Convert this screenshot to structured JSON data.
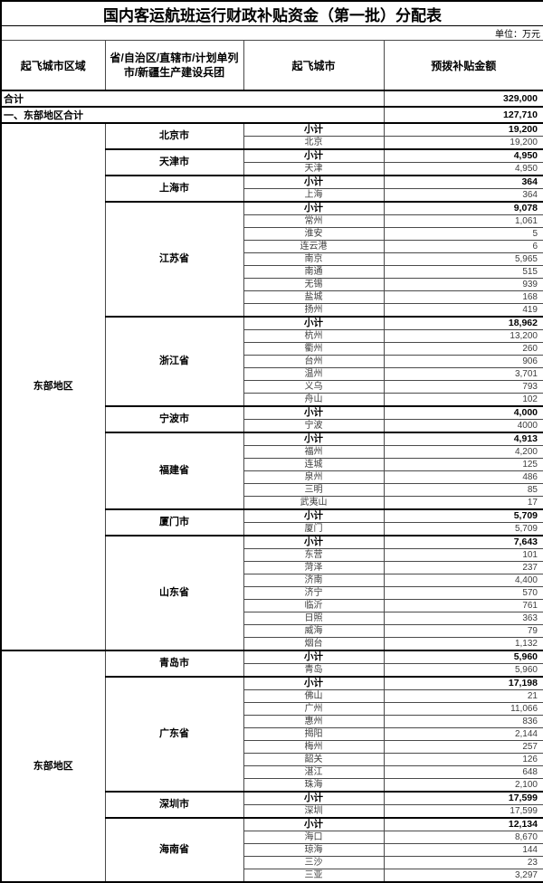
{
  "title": "国内客运航班运行财政补贴资金（第一批）分配表",
  "unit_label": "单位：万元",
  "columns": [
    "起飞城市区域",
    "省/自治区/直辖市/计划单列市/新疆生产建设兵团",
    "起飞城市",
    "预拨补贴金额"
  ],
  "subtotal_label": "小计",
  "summary_rows": [
    {
      "label": "合计",
      "value": "329,000"
    },
    {
      "label": "一、东部地区合计",
      "value": "127,710"
    }
  ],
  "regions": [
    {
      "region": "东部地区",
      "provinces": [
        {
          "name": "北京市",
          "subtotal": "19,200",
          "cities": [
            [
              "北京",
              "19,200"
            ]
          ]
        },
        {
          "name": "天津市",
          "subtotal": "4,950",
          "cities": [
            [
              "天津",
              "4,950"
            ]
          ]
        },
        {
          "name": "上海市",
          "subtotal": "364",
          "cities": [
            [
              "上海",
              "364"
            ]
          ]
        },
        {
          "name": "江苏省",
          "subtotal": "9,078",
          "cities": [
            [
              "常州",
              "1,061"
            ],
            [
              "淮安",
              "5"
            ],
            [
              "连云港",
              "6"
            ],
            [
              "南京",
              "5,965"
            ],
            [
              "南通",
              "515"
            ],
            [
              "无锡",
              "939"
            ],
            [
              "盐城",
              "168"
            ],
            [
              "扬州",
              "419"
            ]
          ]
        },
        {
          "name": "浙江省",
          "subtotal": "18,962",
          "cities": [
            [
              "杭州",
              "13,200"
            ],
            [
              "衢州",
              "260"
            ],
            [
              "台州",
              "906"
            ],
            [
              "温州",
              "3,701"
            ],
            [
              "义乌",
              "793"
            ],
            [
              "舟山",
              "102"
            ]
          ]
        },
        {
          "name": "宁波市",
          "subtotal": "4,000",
          "cities": [
            [
              "宁波",
              "4000"
            ]
          ]
        },
        {
          "name": "福建省",
          "subtotal": "4,913",
          "cities": [
            [
              "福州",
              "4,200"
            ],
            [
              "连城",
              "125"
            ],
            [
              "泉州",
              "486"
            ],
            [
              "三明",
              "85"
            ],
            [
              "武夷山",
              "17"
            ]
          ]
        },
        {
          "name": "厦门市",
          "subtotal": "5,709",
          "cities": [
            [
              "厦门",
              "5,709"
            ]
          ]
        },
        {
          "name": "山东省",
          "subtotal": "7,643",
          "cities": [
            [
              "东营",
              "101"
            ],
            [
              "菏泽",
              "237"
            ],
            [
              "济南",
              "4,400"
            ],
            [
              "济宁",
              "570"
            ],
            [
              "临沂",
              "761"
            ],
            [
              "日照",
              "363"
            ],
            [
              "威海",
              "79"
            ],
            [
              "烟台",
              "1,132"
            ]
          ]
        }
      ]
    },
    {
      "region": "东部地区",
      "provinces": [
        {
          "name": "青岛市",
          "subtotal": "5,960",
          "cities": [
            [
              "青岛",
              "5,960"
            ]
          ]
        },
        {
          "name": "广东省",
          "subtotal": "17,198",
          "cities": [
            [
              "佛山",
              "21"
            ],
            [
              "广州",
              "11,066"
            ],
            [
              "惠州",
              "836"
            ],
            [
              "揭阳",
              "2,144"
            ],
            [
              "梅州",
              "257"
            ],
            [
              "韶关",
              "126"
            ],
            [
              "湛江",
              "648"
            ],
            [
              "珠海",
              "2,100"
            ]
          ]
        },
        {
          "name": "深圳市",
          "subtotal": "17,599",
          "cities": [
            [
              "深圳",
              "17,599"
            ]
          ]
        },
        {
          "name": "海南省",
          "subtotal": "12,134",
          "cities": [
            [
              "海口",
              "8,670"
            ],
            [
              "琼海",
              "144"
            ],
            [
              "三沙",
              "23"
            ],
            [
              "三亚",
              "3,297"
            ]
          ]
        }
      ]
    }
  ]
}
